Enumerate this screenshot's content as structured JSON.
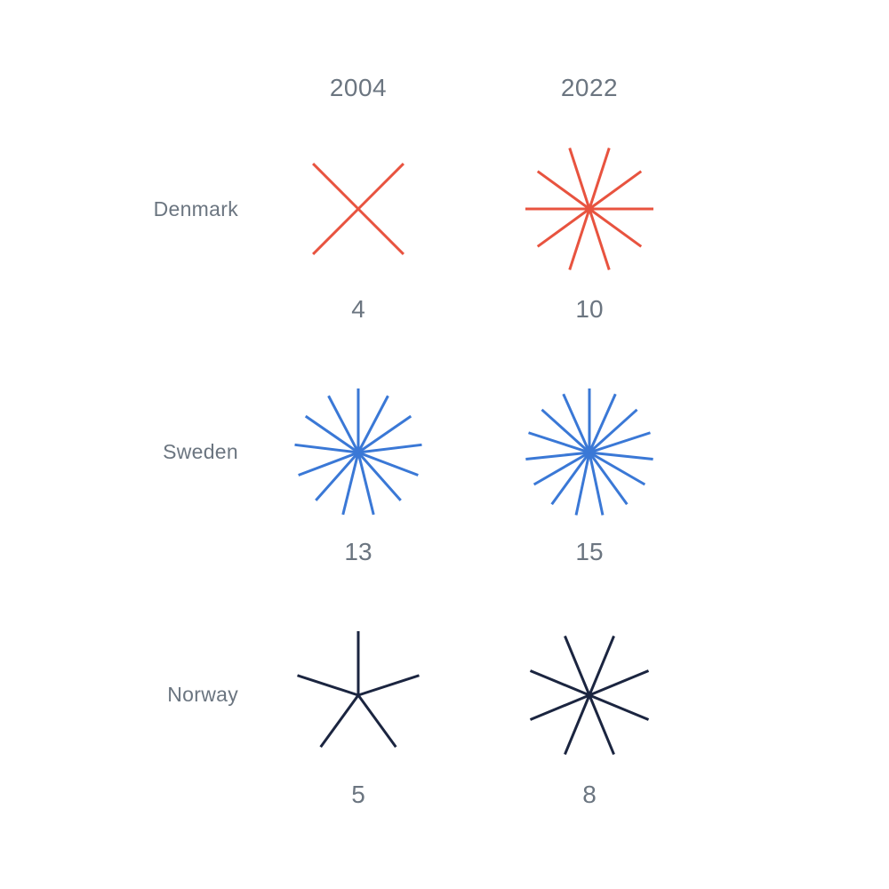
{
  "chart_data": {
    "type": "star-glyph matrix",
    "columns": [
      "2004",
      "2022"
    ],
    "rows": [
      {
        "name": "Denmark",
        "color": "#e8533f",
        "values": [
          4,
          10
        ]
      },
      {
        "name": "Sweden",
        "color": "#3a78d6",
        "values": [
          13,
          15
        ]
      },
      {
        "name": "Norway",
        "color": "#1b2540",
        "values": [
          5,
          8
        ]
      }
    ]
  }
}
